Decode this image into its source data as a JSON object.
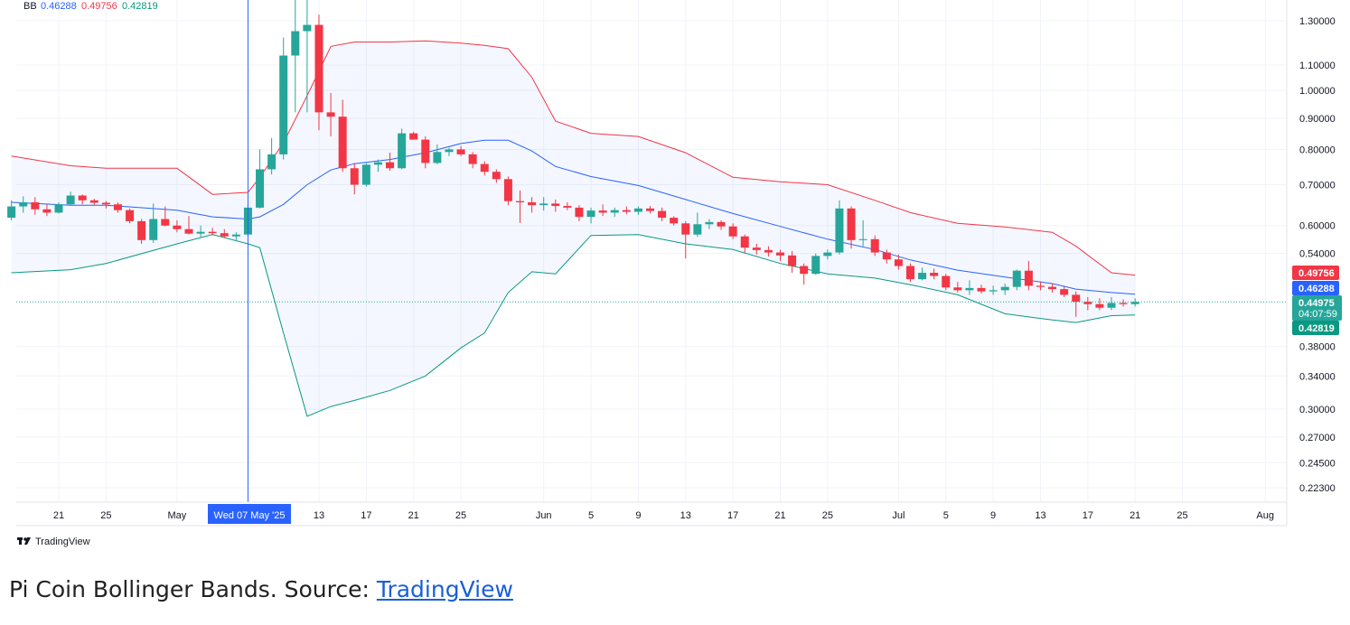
{
  "legend": {
    "label": "BB",
    "middle": "0.46288",
    "upper": "0.49756",
    "lower": "0.42819"
  },
  "crosshair": {
    "date_label": "Wed 07 May '25"
  },
  "brand": {
    "name": "TradingView"
  },
  "caption": {
    "text": "Pi Coin Bollinger Bands. Source: ",
    "link": "TradingView"
  },
  "price_tags": {
    "upper": "0.49756",
    "middle": "0.46288",
    "last": "0.44975",
    "countdown": "04:07:59",
    "lower": "0.42819"
  },
  "colors": {
    "up": "#26a69a",
    "down": "#f23645",
    "upper_band": "#f23645",
    "middle_band": "#2962ff",
    "lower_band": "#089981",
    "band_fill": "#2962ff",
    "crosshair": "#2962ff",
    "grid": "#f0f3fa",
    "text": "#131722"
  },
  "chart_data": {
    "type": "candlestick",
    "scale": "log",
    "ylim": [
      0.2,
      1.45
    ],
    "x_tick_labels": [
      "21",
      "25",
      "May",
      "13",
      "17",
      "21",
      "25",
      "Jun",
      "5",
      "9",
      "13",
      "17",
      "21",
      "25",
      "Jul",
      "5",
      "9",
      "13",
      "17",
      "21",
      "25",
      "Aug"
    ],
    "x_tick_dates": [
      "2025-04-21",
      "2025-04-25",
      "2025-05-01",
      "2025-05-13",
      "2025-05-17",
      "2025-05-21",
      "2025-05-25",
      "2025-06-01",
      "2025-06-05",
      "2025-06-09",
      "2025-06-13",
      "2025-06-17",
      "2025-06-21",
      "2025-06-25",
      "2025-07-01",
      "2025-07-05",
      "2025-07-09",
      "2025-07-13",
      "2025-07-17",
      "2025-07-21",
      "2025-07-25",
      "2025-08-01"
    ],
    "y_tick_labels": [
      "1.30000",
      "1.10000",
      "1.00000",
      "0.90000",
      "0.80000",
      "0.70000",
      "0.60000",
      "0.54000",
      "0.38000",
      "0.34000",
      "0.30000",
      "0.27000",
      "0.24500",
      "0.22300"
    ],
    "crosshair_date": "2025-05-07",
    "candles": [
      {
        "d": "2025-04-17",
        "o": 0.618,
        "h": 0.66,
        "l": 0.612,
        "c": 0.645
      },
      {
        "d": "2025-04-18",
        "o": 0.645,
        "h": 0.67,
        "l": 0.63,
        "c": 0.655
      },
      {
        "d": "2025-04-19",
        "o": 0.655,
        "h": 0.668,
        "l": 0.625,
        "c": 0.638
      },
      {
        "d": "2025-04-20",
        "o": 0.638,
        "h": 0.65,
        "l": 0.622,
        "c": 0.63
      },
      {
        "d": "2025-04-21",
        "o": 0.63,
        "h": 0.655,
        "l": 0.628,
        "c": 0.65
      },
      {
        "d": "2025-04-22",
        "o": 0.65,
        "h": 0.682,
        "l": 0.648,
        "c": 0.672
      },
      {
        "d": "2025-04-23",
        "o": 0.672,
        "h": 0.675,
        "l": 0.65,
        "c": 0.66
      },
      {
        "d": "2025-04-24",
        "o": 0.66,
        "h": 0.664,
        "l": 0.648,
        "c": 0.654
      },
      {
        "d": "2025-04-25",
        "o": 0.654,
        "h": 0.658,
        "l": 0.64,
        "c": 0.65
      },
      {
        "d": "2025-04-26",
        "o": 0.65,
        "h": 0.655,
        "l": 0.63,
        "c": 0.636
      },
      {
        "d": "2025-04-27",
        "o": 0.636,
        "h": 0.64,
        "l": 0.605,
        "c": 0.61
      },
      {
        "d": "2025-04-28",
        "o": 0.61,
        "h": 0.615,
        "l": 0.56,
        "c": 0.568
      },
      {
        "d": "2025-04-29",
        "o": 0.568,
        "h": 0.652,
        "l": 0.562,
        "c": 0.615
      },
      {
        "d": "2025-04-30",
        "o": 0.615,
        "h": 0.645,
        "l": 0.598,
        "c": 0.6
      },
      {
        "d": "2025-05-01",
        "o": 0.6,
        "h": 0.612,
        "l": 0.585,
        "c": 0.592
      },
      {
        "d": "2025-05-02",
        "o": 0.592,
        "h": 0.622,
        "l": 0.58,
        "c": 0.582
      },
      {
        "d": "2025-05-03",
        "o": 0.582,
        "h": 0.6,
        "l": 0.575,
        "c": 0.586
      },
      {
        "d": "2025-05-04",
        "o": 0.586,
        "h": 0.595,
        "l": 0.578,
        "c": 0.583
      },
      {
        "d": "2025-05-05",
        "o": 0.583,
        "h": 0.592,
        "l": 0.572,
        "c": 0.576
      },
      {
        "d": "2025-05-06",
        "o": 0.576,
        "h": 0.585,
        "l": 0.568,
        "c": 0.58
      },
      {
        "d": "2025-05-07",
        "o": 0.58,
        "h": 0.648,
        "l": 0.576,
        "c": 0.642
      },
      {
        "d": "2025-05-08",
        "o": 0.642,
        "h": 0.8,
        "l": 0.64,
        "c": 0.742
      },
      {
        "d": "2025-05-09",
        "o": 0.742,
        "h": 0.835,
        "l": 0.728,
        "c": 0.785
      },
      {
        "d": "2025-05-10",
        "o": 0.785,
        "h": 1.22,
        "l": 0.77,
        "c": 1.14
      },
      {
        "d": "2025-05-11",
        "o": 1.14,
        "h": 1.65,
        "l": 0.92,
        "c": 1.25
      },
      {
        "d": "2025-05-12",
        "o": 1.25,
        "h": 1.55,
        "l": 0.92,
        "c": 1.28
      },
      {
        "d": "2025-05-13",
        "o": 1.28,
        "h": 1.33,
        "l": 0.86,
        "c": 0.92
      },
      {
        "d": "2025-05-14",
        "o": 0.92,
        "h": 0.99,
        "l": 0.84,
        "c": 0.905
      },
      {
        "d": "2025-05-15",
        "o": 0.905,
        "h": 0.965,
        "l": 0.735,
        "c": 0.745
      },
      {
        "d": "2025-05-16",
        "o": 0.745,
        "h": 0.76,
        "l": 0.675,
        "c": 0.7
      },
      {
        "d": "2025-05-17",
        "o": 0.7,
        "h": 0.76,
        "l": 0.695,
        "c": 0.755
      },
      {
        "d": "2025-05-18",
        "o": 0.755,
        "h": 0.77,
        "l": 0.735,
        "c": 0.762
      },
      {
        "d": "2025-05-19",
        "o": 0.762,
        "h": 0.79,
        "l": 0.738,
        "c": 0.745
      },
      {
        "d": "2025-05-20",
        "o": 0.745,
        "h": 0.865,
        "l": 0.742,
        "c": 0.85
      },
      {
        "d": "2025-05-21",
        "o": 0.85,
        "h": 0.855,
        "l": 0.832,
        "c": 0.83
      },
      {
        "d": "2025-05-22",
        "o": 0.83,
        "h": 0.84,
        "l": 0.745,
        "c": 0.76
      },
      {
        "d": "2025-05-23",
        "o": 0.76,
        "h": 0.815,
        "l": 0.756,
        "c": 0.792
      },
      {
        "d": "2025-05-24",
        "o": 0.792,
        "h": 0.805,
        "l": 0.78,
        "c": 0.8
      },
      {
        "d": "2025-05-25",
        "o": 0.8,
        "h": 0.81,
        "l": 0.78,
        "c": 0.785
      },
      {
        "d": "2025-05-26",
        "o": 0.785,
        "h": 0.792,
        "l": 0.745,
        "c": 0.757
      },
      {
        "d": "2025-05-27",
        "o": 0.757,
        "h": 0.765,
        "l": 0.725,
        "c": 0.735
      },
      {
        "d": "2025-05-28",
        "o": 0.735,
        "h": 0.742,
        "l": 0.705,
        "c": 0.715
      },
      {
        "d": "2025-05-29",
        "o": 0.715,
        "h": 0.722,
        "l": 0.648,
        "c": 0.658
      },
      {
        "d": "2025-05-30",
        "o": 0.658,
        "h": 0.685,
        "l": 0.606,
        "c": 0.655
      },
      {
        "d": "2025-05-31",
        "o": 0.655,
        "h": 0.668,
        "l": 0.63,
        "c": 0.648
      },
      {
        "d": "2025-06-01",
        "o": 0.648,
        "h": 0.668,
        "l": 0.635,
        "c": 0.652
      },
      {
        "d": "2025-06-02",
        "o": 0.652,
        "h": 0.662,
        "l": 0.632,
        "c": 0.646
      },
      {
        "d": "2025-06-03",
        "o": 0.646,
        "h": 0.655,
        "l": 0.636,
        "c": 0.642
      },
      {
        "d": "2025-06-04",
        "o": 0.642,
        "h": 0.648,
        "l": 0.61,
        "c": 0.62
      },
      {
        "d": "2025-06-05",
        "o": 0.62,
        "h": 0.642,
        "l": 0.605,
        "c": 0.635
      },
      {
        "d": "2025-06-06",
        "o": 0.635,
        "h": 0.65,
        "l": 0.622,
        "c": 0.63
      },
      {
        "d": "2025-06-07",
        "o": 0.63,
        "h": 0.642,
        "l": 0.62,
        "c": 0.636
      },
      {
        "d": "2025-06-08",
        "o": 0.636,
        "h": 0.645,
        "l": 0.626,
        "c": 0.632
      },
      {
        "d": "2025-06-09",
        "o": 0.632,
        "h": 0.645,
        "l": 0.625,
        "c": 0.64
      },
      {
        "d": "2025-06-10",
        "o": 0.64,
        "h": 0.646,
        "l": 0.628,
        "c": 0.634
      },
      {
        "d": "2025-06-11",
        "o": 0.634,
        "h": 0.642,
        "l": 0.61,
        "c": 0.618
      },
      {
        "d": "2025-06-12",
        "o": 0.618,
        "h": 0.622,
        "l": 0.6,
        "c": 0.605
      },
      {
        "d": "2025-06-13",
        "o": 0.605,
        "h": 0.61,
        "l": 0.53,
        "c": 0.58
      },
      {
        "d": "2025-06-14",
        "o": 0.58,
        "h": 0.63,
        "l": 0.575,
        "c": 0.603
      },
      {
        "d": "2025-06-15",
        "o": 0.603,
        "h": 0.615,
        "l": 0.592,
        "c": 0.608
      },
      {
        "d": "2025-06-16",
        "o": 0.608,
        "h": 0.612,
        "l": 0.59,
        "c": 0.598
      },
      {
        "d": "2025-06-17",
        "o": 0.598,
        "h": 0.605,
        "l": 0.57,
        "c": 0.576
      },
      {
        "d": "2025-06-18",
        "o": 0.576,
        "h": 0.58,
        "l": 0.54,
        "c": 0.552
      },
      {
        "d": "2025-06-19",
        "o": 0.552,
        "h": 0.56,
        "l": 0.538,
        "c": 0.547
      },
      {
        "d": "2025-06-20",
        "o": 0.547,
        "h": 0.555,
        "l": 0.534,
        "c": 0.542
      },
      {
        "d": "2025-06-21",
        "o": 0.542,
        "h": 0.548,
        "l": 0.525,
        "c": 0.536
      },
      {
        "d": "2025-06-22",
        "o": 0.536,
        "h": 0.545,
        "l": 0.502,
        "c": 0.515
      },
      {
        "d": "2025-06-23",
        "o": 0.515,
        "h": 0.52,
        "l": 0.48,
        "c": 0.5
      },
      {
        "d": "2025-06-24",
        "o": 0.5,
        "h": 0.54,
        "l": 0.498,
        "c": 0.535
      },
      {
        "d": "2025-06-25",
        "o": 0.535,
        "h": 0.548,
        "l": 0.528,
        "c": 0.542
      },
      {
        "d": "2025-06-26",
        "o": 0.542,
        "h": 0.66,
        "l": 0.538,
        "c": 0.64
      },
      {
        "d": "2025-06-27",
        "o": 0.64,
        "h": 0.645,
        "l": 0.55,
        "c": 0.568
      },
      {
        "d": "2025-06-28",
        "o": 0.568,
        "h": 0.612,
        "l": 0.555,
        "c": 0.57
      },
      {
        "d": "2025-06-29",
        "o": 0.57,
        "h": 0.578,
        "l": 0.535,
        "c": 0.542
      },
      {
        "d": "2025-06-30",
        "o": 0.542,
        "h": 0.548,
        "l": 0.52,
        "c": 0.528
      },
      {
        "d": "2025-07-01",
        "o": 0.528,
        "h": 0.538,
        "l": 0.508,
        "c": 0.515
      },
      {
        "d": "2025-07-02",
        "o": 0.515,
        "h": 0.52,
        "l": 0.485,
        "c": 0.49
      },
      {
        "d": "2025-07-03",
        "o": 0.49,
        "h": 0.512,
        "l": 0.488,
        "c": 0.502
      },
      {
        "d": "2025-07-04",
        "o": 0.502,
        "h": 0.51,
        "l": 0.49,
        "c": 0.496
      },
      {
        "d": "2025-07-05",
        "o": 0.496,
        "h": 0.5,
        "l": 0.47,
        "c": 0.475
      },
      {
        "d": "2025-07-06",
        "o": 0.475,
        "h": 0.485,
        "l": 0.466,
        "c": 0.47
      },
      {
        "d": "2025-07-07",
        "o": 0.47,
        "h": 0.488,
        "l": 0.462,
        "c": 0.474
      },
      {
        "d": "2025-07-08",
        "o": 0.474,
        "h": 0.48,
        "l": 0.464,
        "c": 0.468
      },
      {
        "d": "2025-07-09",
        "o": 0.468,
        "h": 0.478,
        "l": 0.462,
        "c": 0.47
      },
      {
        "d": "2025-07-10",
        "o": 0.47,
        "h": 0.482,
        "l": 0.462,
        "c": 0.476
      },
      {
        "d": "2025-07-11",
        "o": 0.476,
        "h": 0.508,
        "l": 0.47,
        "c": 0.506
      },
      {
        "d": "2025-07-12",
        "o": 0.506,
        "h": 0.525,
        "l": 0.47,
        "c": 0.478
      },
      {
        "d": "2025-07-13",
        "o": 0.478,
        "h": 0.485,
        "l": 0.47,
        "c": 0.476
      },
      {
        "d": "2025-07-14",
        "o": 0.476,
        "h": 0.482,
        "l": 0.466,
        "c": 0.472
      },
      {
        "d": "2025-07-15",
        "o": 0.472,
        "h": 0.478,
        "l": 0.458,
        "c": 0.462
      },
      {
        "d": "2025-07-16",
        "o": 0.462,
        "h": 0.468,
        "l": 0.425,
        "c": 0.45
      },
      {
        "d": "2025-07-17",
        "o": 0.45,
        "h": 0.458,
        "l": 0.436,
        "c": 0.446
      },
      {
        "d": "2025-07-18",
        "o": 0.446,
        "h": 0.456,
        "l": 0.436,
        "c": 0.44
      },
      {
        "d": "2025-07-19",
        "o": 0.44,
        "h": 0.458,
        "l": 0.436,
        "c": 0.448
      },
      {
        "d": "2025-07-20",
        "o": 0.448,
        "h": 0.454,
        "l": 0.442,
        "c": 0.446
      },
      {
        "d": "2025-07-21",
        "o": 0.446,
        "h": 0.456,
        "l": 0.442,
        "c": 0.44975
      }
    ],
    "bands": {
      "dates": [
        "2025-04-17",
        "2025-04-22",
        "2025-04-25",
        "2025-05-01",
        "2025-05-04",
        "2025-05-07",
        "2025-05-08",
        "2025-05-10",
        "2025-05-12",
        "2025-05-14",
        "2025-05-16",
        "2025-05-19",
        "2025-05-22",
        "2025-05-25",
        "2025-05-27",
        "2025-05-29",
        "2025-05-31",
        "2025-06-02",
        "2025-06-05",
        "2025-06-09",
        "2025-06-13",
        "2025-06-17",
        "2025-06-21",
        "2025-06-25",
        "2025-06-29",
        "2025-07-02",
        "2025-07-06",
        "2025-07-10",
        "2025-07-14",
        "2025-07-16",
        "2025-07-19",
        "2025-07-21"
      ],
      "upper": [
        0.78,
        0.752,
        0.745,
        0.745,
        0.675,
        0.68,
        0.72,
        0.82,
        0.98,
        1.18,
        1.2,
        1.2,
        1.205,
        1.195,
        1.185,
        1.17,
        1.05,
        0.89,
        0.85,
        0.84,
        0.79,
        0.72,
        0.708,
        0.7,
        0.66,
        0.63,
        0.605,
        0.597,
        0.585,
        0.555,
        0.502,
        0.49756
      ],
      "middle": [
        0.655,
        0.648,
        0.648,
        0.636,
        0.62,
        0.615,
        0.62,
        0.65,
        0.7,
        0.74,
        0.758,
        0.77,
        0.79,
        0.818,
        0.828,
        0.828,
        0.795,
        0.75,
        0.722,
        0.698,
        0.662,
        0.628,
        0.598,
        0.57,
        0.548,
        0.527,
        0.507,
        0.494,
        0.482,
        0.472,
        0.466,
        0.46288
      ],
      "lower": [
        0.502,
        0.508,
        0.52,
        0.56,
        0.58,
        0.56,
        0.552,
        0.4,
        0.292,
        0.303,
        0.31,
        0.322,
        0.34,
        0.378,
        0.4,
        0.466,
        0.504,
        0.5,
        0.578,
        0.58,
        0.56,
        0.548,
        0.52,
        0.5,
        0.492,
        0.48,
        0.462,
        0.43,
        0.42,
        0.416,
        0.427,
        0.42819
      ]
    }
  }
}
